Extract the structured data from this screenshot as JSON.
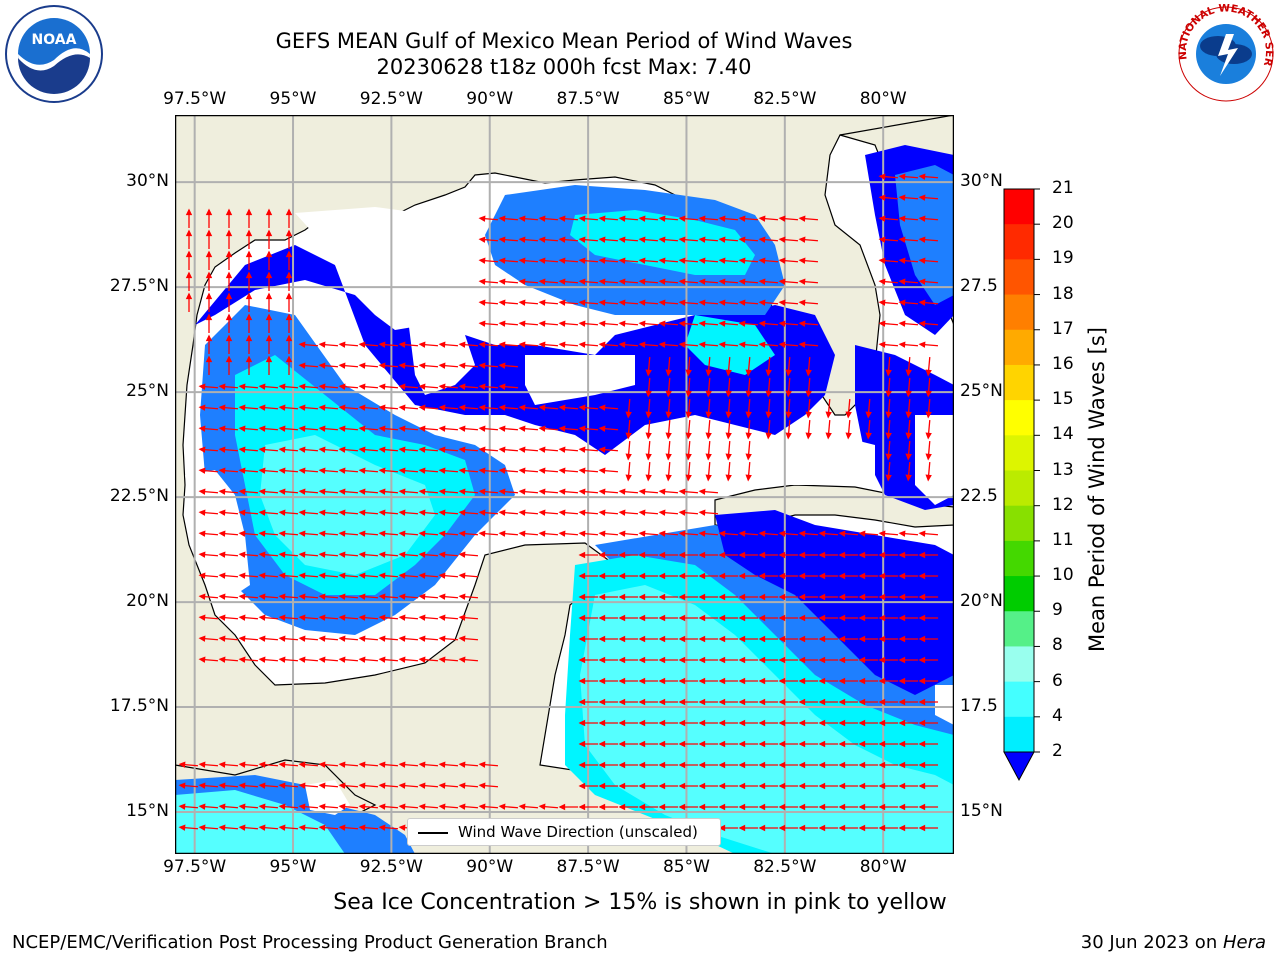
{
  "title": {
    "line1": "GEFS MEAN Gulf of Mexico Mean Period of Wind Waves",
    "line2": "20230628 t18z 000h fcst   Max: 7.40"
  },
  "logos": {
    "left": "NOAA",
    "right": "NATIONAL WEATHER SERVICE"
  },
  "axes": {
    "lon_ticks": [
      "97.5°W",
      "95°W",
      "92.5°W",
      "90°W",
      "87.5°W",
      "85°W",
      "82.5°W",
      "80°W"
    ],
    "lon_values": [
      -97.5,
      -95,
      -92.5,
      -90,
      -87.5,
      -85,
      -82.5,
      -80
    ],
    "lat_ticks": [
      "30°N",
      "27.5°N",
      "25°N",
      "22.5°N",
      "20°N",
      "17.5°N",
      "15°N"
    ],
    "lat_ticks_right": [
      "30°N",
      "27.5",
      "25°N",
      "22.5",
      "20°N",
      "17.5",
      "15°N"
    ],
    "lat_values": [
      30,
      27.5,
      25,
      22.5,
      20,
      17.5,
      15
    ],
    "lon_range": [
      -98,
      -78.2
    ],
    "lat_range": [
      14,
      31.6
    ],
    "grid": true
  },
  "colorbar": {
    "label": "Mean Period of Wind Waves [s]",
    "ticks": [
      "21",
      "20",
      "19",
      "18",
      "17",
      "16",
      "15",
      "14",
      "13",
      "12",
      "11",
      "10",
      "9",
      "8",
      "6",
      "4",
      "2"
    ],
    "colors": [
      "#ff0000",
      "#ff2a00",
      "#ff5500",
      "#ff7f00",
      "#ffaa00",
      "#ffd400",
      "#ffff00",
      "#ddf500",
      "#bbeb00",
      "#88e000",
      "#44d800",
      "#00cc00",
      "#55f088",
      "#99ffee",
      "#44ffff",
      "#00eeff",
      "#0a7fff"
    ],
    "under_color": "#0000ff"
  },
  "legend": {
    "text": "Wind Wave Direction (unscaled)"
  },
  "note": "Sea Ice Concentration > 15% is shown in pink to yellow",
  "footer": {
    "left": "NCEP/EMC/Verification Post Processing Product Generation Branch",
    "date": "30 Jun 2023 on ",
    "machine": "Hera"
  },
  "colors": {
    "land": "#efeedd",
    "blue": "#0000ff",
    "medium_blue": "#1e7fff",
    "cyan": "#00f5ff",
    "light_cyan": "#55ffff",
    "pale_cyan": "#99ffff",
    "arrow": "#ff0000",
    "grid": "#b0b0b0"
  }
}
